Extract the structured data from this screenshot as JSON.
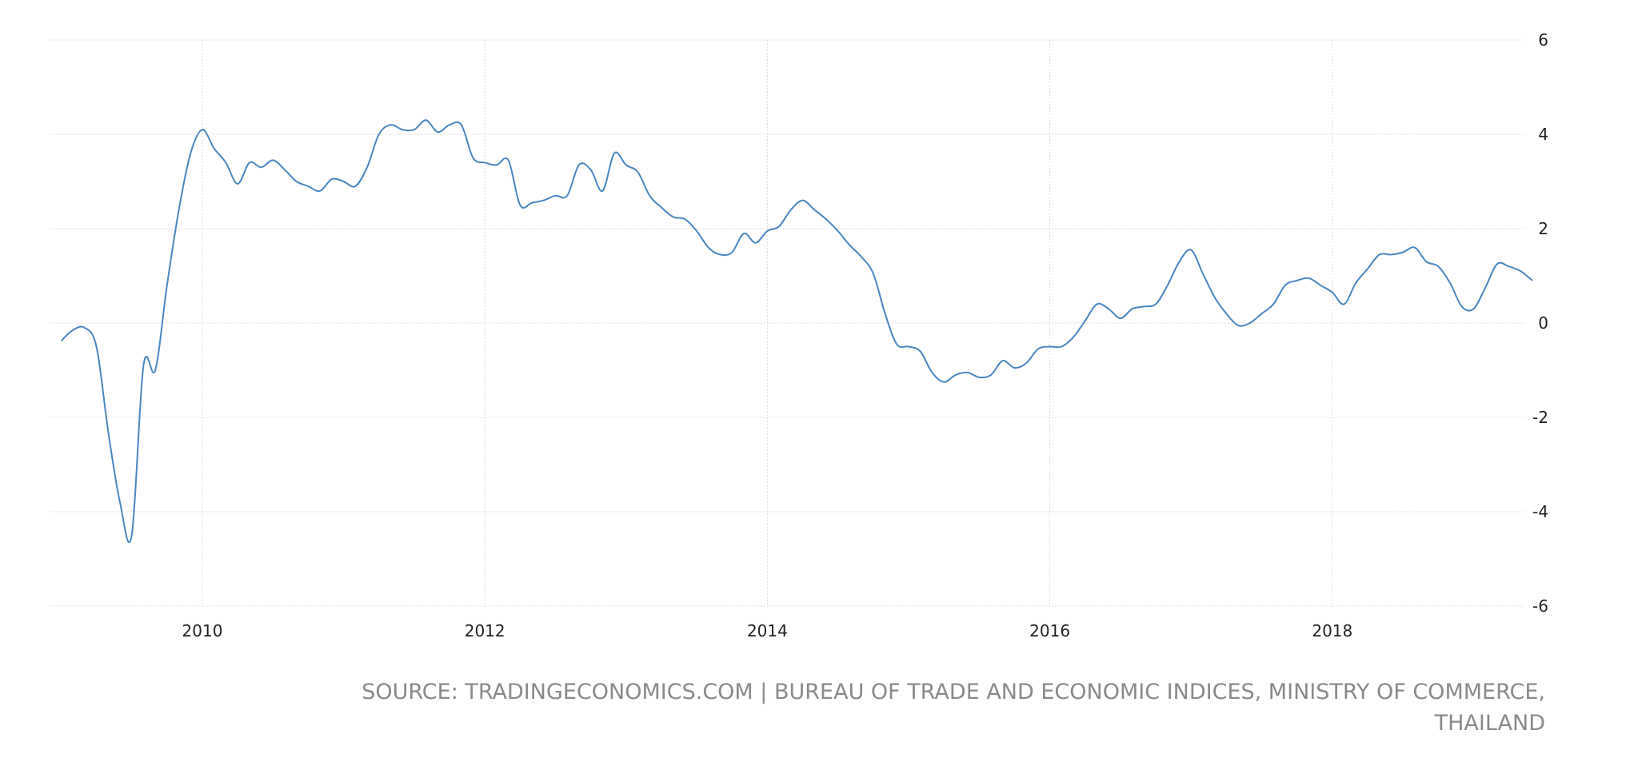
{
  "chart_data": {
    "type": "line",
    "title": "",
    "xlabel": "",
    "ylabel": "",
    "ylim": [
      -6,
      6
    ],
    "xlim": [
      2008.9,
      2019.5
    ],
    "grid": true,
    "y_ticks": [
      "6",
      "4",
      "2",
      "0",
      "-2",
      "-4",
      "-6"
    ],
    "y_tick_values": [
      6,
      4,
      2,
      0,
      -2,
      -4,
      -6
    ],
    "x_ticks": [
      "2010",
      "2012",
      "2014",
      "2016",
      "2018"
    ],
    "x_tick_values": [
      2010,
      2012,
      2014,
      2016,
      2018
    ],
    "series": [
      {
        "name": "Thailand",
        "color": "#4a86c0",
        "start": "2009-01",
        "frequency": "monthly",
        "values": [
          -0.38,
          -0.15,
          -0.1,
          -0.5,
          -2.3,
          -3.8,
          -4.5,
          -0.9,
          -1.0,
          0.8,
          2.4,
          3.6,
          4.1,
          3.7,
          3.4,
          2.95,
          3.4,
          3.3,
          3.45,
          3.25,
          3.0,
          2.9,
          2.8,
          3.05,
          3.0,
          2.9,
          3.3,
          4.0,
          4.2,
          4.1,
          4.1,
          4.3,
          4.05,
          4.2,
          4.2,
          3.5,
          3.4,
          3.35,
          3.45,
          2.5,
          2.55,
          2.6,
          2.7,
          2.7,
          3.35,
          3.25,
          2.8,
          3.6,
          3.35,
          3.2,
          2.7,
          2.45,
          2.25,
          2.2,
          1.95,
          1.6,
          1.45,
          1.5,
          1.9,
          1.7,
          1.95,
          2.05,
          2.4,
          2.6,
          2.4,
          2.2,
          1.95,
          1.65,
          1.4,
          1.05,
          0.2,
          -0.45,
          -0.5,
          -0.6,
          -1.05,
          -1.25,
          -1.1,
          -1.05,
          -1.15,
          -1.1,
          -0.8,
          -0.95,
          -0.85,
          -0.55,
          -0.5,
          -0.5,
          -0.3,
          0.05,
          0.4,
          0.3,
          0.1,
          0.3,
          0.35,
          0.4,
          0.8,
          1.3,
          1.55,
          1.05,
          0.55,
          0.2,
          -0.05,
          0.0,
          0.2,
          0.4,
          0.8,
          0.9,
          0.95,
          0.8,
          0.65,
          0.4,
          0.85,
          1.15,
          1.45,
          1.45,
          1.5,
          1.6,
          1.3,
          1.2,
          0.85,
          0.35,
          0.3,
          0.75,
          1.25,
          1.2,
          1.1,
          0.9
        ]
      }
    ]
  },
  "source": {
    "line1": "SOURCE: TRADINGECONOMICS.COM | BUREAU OF TRADE AND ECONOMIC INDICES, MINISTRY OF COMMERCE,",
    "line2": "THAILAND"
  }
}
